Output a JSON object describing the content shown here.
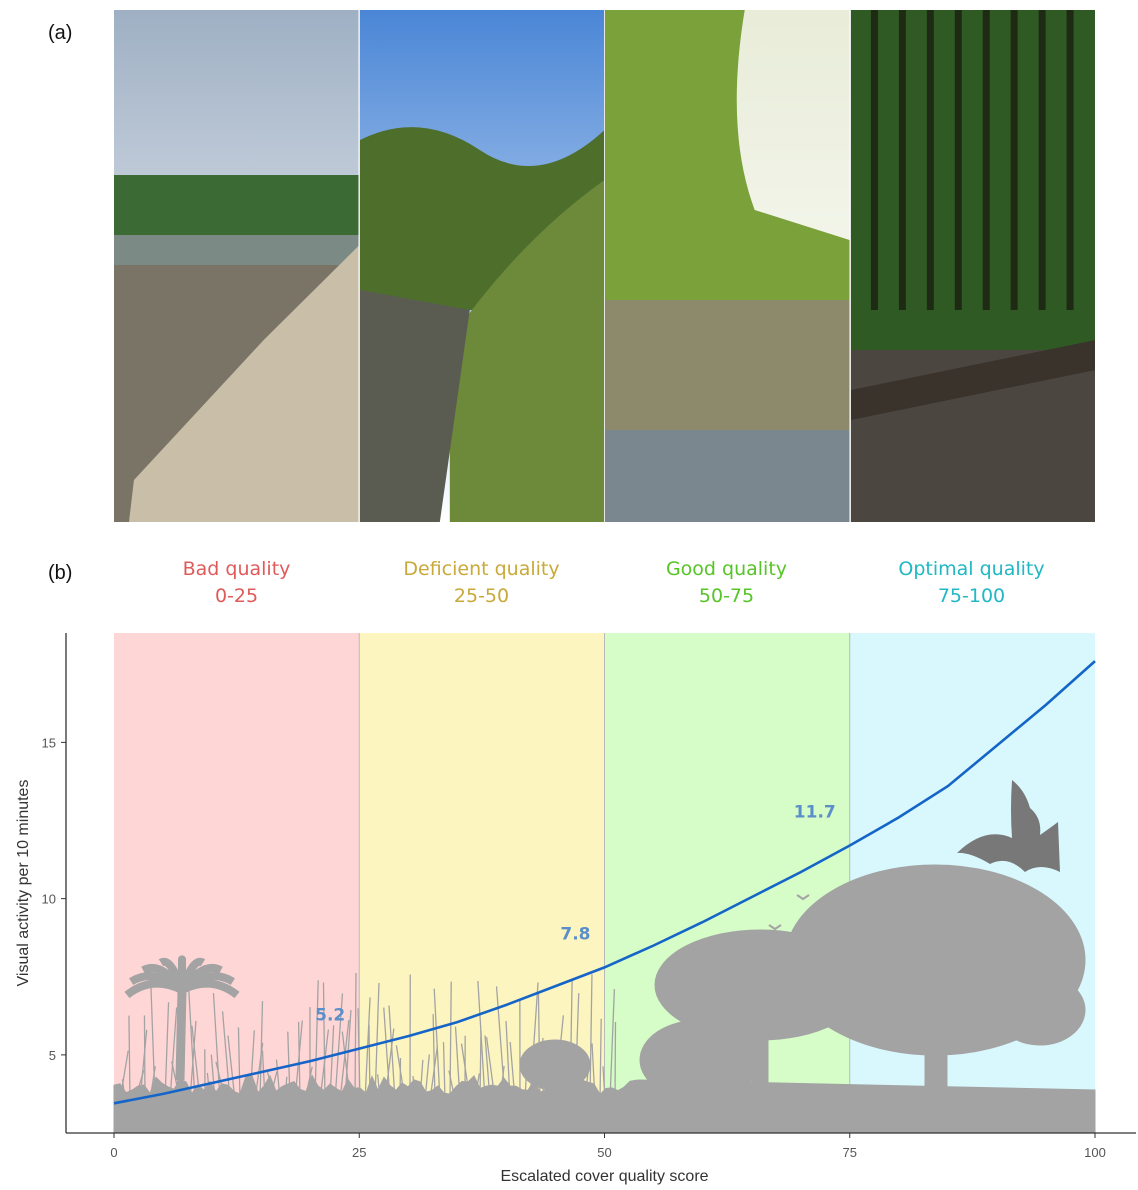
{
  "panel_a_label": "(a)",
  "panel_b_label": "(b)",
  "photos": [
    {
      "name": "bad-quality-photo",
      "sky": "#9fb0c4",
      "water": "#8a8f88",
      "veg": "#3c6a35"
    },
    {
      "name": "deficient-quality-photo",
      "sky": "#4a86d6",
      "water": "#5a5c52",
      "veg": "#4e6e2c"
    },
    {
      "name": "good-quality-photo",
      "sky": "#e8ecd8",
      "water": "#8c8a6a",
      "veg": "#7aa13a"
    },
    {
      "name": "optimal-quality-photo",
      "sky": "#c9d9b8",
      "water": "#4b4640",
      "veg": "#2f5a24"
    }
  ],
  "categories": [
    {
      "name": "Bad quality",
      "range": "0-25",
      "color": "#e05a5a",
      "band_color": "#ffd6d6"
    },
    {
      "name": "Deficient quality",
      "range": "25-50",
      "color": "#c9a93a",
      "band_color": "#fdf5c0"
    },
    {
      "name": "Good quality",
      "range": "50-75",
      "color": "#57c427",
      "band_color": "#d6fcc8"
    },
    {
      "name": "Optimal quality",
      "range": "75-100",
      "color": "#1fb8c4",
      "band_color": "#d8f8fd"
    }
  ],
  "chart_data": {
    "type": "line",
    "xlabel": "Escalated cover quality score",
    "ylabel": "Visual activity per 10 minutes",
    "xlim": [
      0,
      100
    ],
    "ylim": [
      2.5,
      18.5
    ],
    "xticks": [
      0,
      25,
      50,
      75,
      100
    ],
    "yticks": [
      5,
      10,
      15
    ],
    "grid": false,
    "line_color": "#1565c8",
    "series": [
      {
        "x": [
          0,
          5,
          10,
          15,
          20,
          25,
          30,
          35,
          40,
          45,
          50,
          55,
          60,
          65,
          70,
          75,
          80,
          85,
          90,
          95,
          100
        ],
        "values": [
          3.45,
          3.75,
          4.1,
          4.45,
          4.8,
          5.2,
          5.6,
          6.05,
          6.6,
          7.2,
          7.8,
          8.5,
          9.25,
          10.05,
          10.85,
          11.7,
          12.6,
          13.6,
          14.9,
          16.2,
          17.6
        ]
      }
    ],
    "annotations": [
      {
        "x": 25,
        "y": 5.2,
        "text": "5.2"
      },
      {
        "x": 50,
        "y": 7.8,
        "text": "7.8"
      },
      {
        "x": 75,
        "y": 11.7,
        "text": "11.7"
      }
    ],
    "silhouette_color": "#a3a3a3",
    "bat_color": "#787878"
  }
}
